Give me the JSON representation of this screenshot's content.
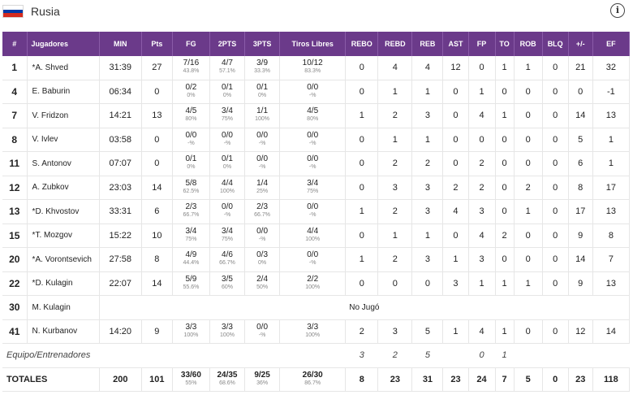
{
  "team": {
    "name": "Rusia",
    "flag_colors": [
      "#ffffff",
      "#0039a6",
      "#d52b1e"
    ],
    "info_icon_glyph": "i"
  },
  "columns": [
    "#",
    "Jugadores",
    "MIN",
    "Pts",
    "FG",
    "2PTS",
    "3PTS",
    "Tiros Libres",
    "REBO",
    "REBD",
    "REB",
    "AST",
    "FP",
    "TO",
    "ROB",
    "BLQ",
    "+/-",
    "EF"
  ],
  "players": [
    {
      "num": "1",
      "name": "*A. Shved",
      "min": "31:39",
      "pts": "27",
      "fg": "7/16",
      "fg_pct": "43.8%",
      "p2": "4/7",
      "p2_pct": "57.1%",
      "p3": "3/9",
      "p3_pct": "33.3%",
      "ft": "10/12",
      "ft_pct": "83.3%",
      "rebo": "0",
      "rebd": "4",
      "reb": "4",
      "ast": "12",
      "fp": "0",
      "to": "1",
      "rob": "1",
      "blq": "0",
      "pm": "21",
      "ef": "32"
    },
    {
      "num": "4",
      "name": "E. Baburin",
      "min": "06:34",
      "pts": "0",
      "fg": "0/2",
      "fg_pct": "0%",
      "p2": "0/1",
      "p2_pct": "0%",
      "p3": "0/1",
      "p3_pct": "0%",
      "ft": "0/0",
      "ft_pct": "-%",
      "rebo": "0",
      "rebd": "1",
      "reb": "1",
      "ast": "0",
      "fp": "1",
      "to": "0",
      "rob": "0",
      "blq": "0",
      "pm": "0",
      "ef": "-1"
    },
    {
      "num": "7",
      "name": "V. Fridzon",
      "min": "14:21",
      "pts": "13",
      "fg": "4/5",
      "fg_pct": "80%",
      "p2": "3/4",
      "p2_pct": "75%",
      "p3": "1/1",
      "p3_pct": "100%",
      "ft": "4/5",
      "ft_pct": "80%",
      "rebo": "1",
      "rebd": "2",
      "reb": "3",
      "ast": "0",
      "fp": "4",
      "to": "1",
      "rob": "0",
      "blq": "0",
      "pm": "14",
      "ef": "13"
    },
    {
      "num": "8",
      "name": "V. Ivlev",
      "min": "03:58",
      "pts": "0",
      "fg": "0/0",
      "fg_pct": "-%",
      "p2": "0/0",
      "p2_pct": "-%",
      "p3": "0/0",
      "p3_pct": "-%",
      "ft": "0/0",
      "ft_pct": "-%",
      "rebo": "0",
      "rebd": "1",
      "reb": "1",
      "ast": "0",
      "fp": "0",
      "to": "0",
      "rob": "0",
      "blq": "0",
      "pm": "5",
      "ef": "1"
    },
    {
      "num": "11",
      "name": "S. Antonov",
      "min": "07:07",
      "pts": "0",
      "fg": "0/1",
      "fg_pct": "0%",
      "p2": "0/1",
      "p2_pct": "0%",
      "p3": "0/0",
      "p3_pct": "-%",
      "ft": "0/0",
      "ft_pct": "-%",
      "rebo": "0",
      "rebd": "2",
      "reb": "2",
      "ast": "0",
      "fp": "2",
      "to": "0",
      "rob": "0",
      "blq": "0",
      "pm": "6",
      "ef": "1"
    },
    {
      "num": "12",
      "name": "A. Zubkov",
      "min": "23:03",
      "pts": "14",
      "fg": "5/8",
      "fg_pct": "62.5%",
      "p2": "4/4",
      "p2_pct": "100%",
      "p3": "1/4",
      "p3_pct": "25%",
      "ft": "3/4",
      "ft_pct": "75%",
      "rebo": "0",
      "rebd": "3",
      "reb": "3",
      "ast": "2",
      "fp": "2",
      "to": "0",
      "rob": "2",
      "blq": "0",
      "pm": "8",
      "ef": "17"
    },
    {
      "num": "13",
      "name": "*D. Khvostov",
      "min": "33:31",
      "pts": "6",
      "fg": "2/3",
      "fg_pct": "66.7%",
      "p2": "0/0",
      "p2_pct": "-%",
      "p3": "2/3",
      "p3_pct": "66.7%",
      "ft": "0/0",
      "ft_pct": "-%",
      "rebo": "1",
      "rebd": "2",
      "reb": "3",
      "ast": "4",
      "fp": "3",
      "to": "0",
      "rob": "1",
      "blq": "0",
      "pm": "17",
      "ef": "13"
    },
    {
      "num": "15",
      "name": "*T. Mozgov",
      "min": "15:22",
      "pts": "10",
      "fg": "3/4",
      "fg_pct": "75%",
      "p2": "3/4",
      "p2_pct": "75%",
      "p3": "0/0",
      "p3_pct": "-%",
      "ft": "4/4",
      "ft_pct": "100%",
      "rebo": "0",
      "rebd": "1",
      "reb": "1",
      "ast": "0",
      "fp": "4",
      "to": "2",
      "rob": "0",
      "blq": "0",
      "pm": "9",
      "ef": "8"
    },
    {
      "num": "20",
      "name": "*A. Vorontsevich",
      "min": "27:58",
      "pts": "8",
      "fg": "4/9",
      "fg_pct": "44.4%",
      "p2": "4/6",
      "p2_pct": "66.7%",
      "p3": "0/3",
      "p3_pct": "0%",
      "ft": "0/0",
      "ft_pct": "-%",
      "rebo": "1",
      "rebd": "2",
      "reb": "3",
      "ast": "1",
      "fp": "3",
      "to": "0",
      "rob": "0",
      "blq": "0",
      "pm": "14",
      "ef": "7"
    },
    {
      "num": "22",
      "name": "*D. Kulagin",
      "min": "22:07",
      "pts": "14",
      "fg": "5/9",
      "fg_pct": "55.6%",
      "p2": "3/5",
      "p2_pct": "60%",
      "p3": "2/4",
      "p3_pct": "50%",
      "ft": "2/2",
      "ft_pct": "100%",
      "rebo": "0",
      "rebd": "0",
      "reb": "0",
      "ast": "3",
      "fp": "1",
      "to": "1",
      "rob": "1",
      "blq": "0",
      "pm": "9",
      "ef": "13"
    },
    {
      "num": "41",
      "name": "N. Kurbanov",
      "min": "14:20",
      "pts": "9",
      "fg": "3/3",
      "fg_pct": "100%",
      "p2": "3/3",
      "p2_pct": "100%",
      "p3": "0/0",
      "p3_pct": "-%",
      "ft": "3/3",
      "ft_pct": "100%",
      "rebo": "2",
      "rebd": "3",
      "reb": "5",
      "ast": "1",
      "fp": "4",
      "to": "1",
      "rob": "0",
      "blq": "0",
      "pm": "12",
      "ef": "14"
    }
  ],
  "dnp": {
    "num": "30",
    "name": "M. Kulagin",
    "text": "No Jugó"
  },
  "team_row": {
    "label": "Equipo/Entrenadores",
    "rebo": "3",
    "rebd": "2",
    "reb": "5",
    "fp": "0",
    "to": "1"
  },
  "totals": {
    "label": "TOTALES",
    "min": "200",
    "pts": "101",
    "fg": "33/60",
    "fg_pct": "55%",
    "p2": "24/35",
    "p2_pct": "68.6%",
    "p3": "9/25",
    "p3_pct": "36%",
    "ft": "26/30",
    "ft_pct": "86.7%",
    "rebo": "8",
    "rebd": "23",
    "reb": "31",
    "ast": "23",
    "fp": "24",
    "to": "7",
    "rob": "5",
    "blq": "0",
    "pm": "23",
    "ef": "118"
  }
}
